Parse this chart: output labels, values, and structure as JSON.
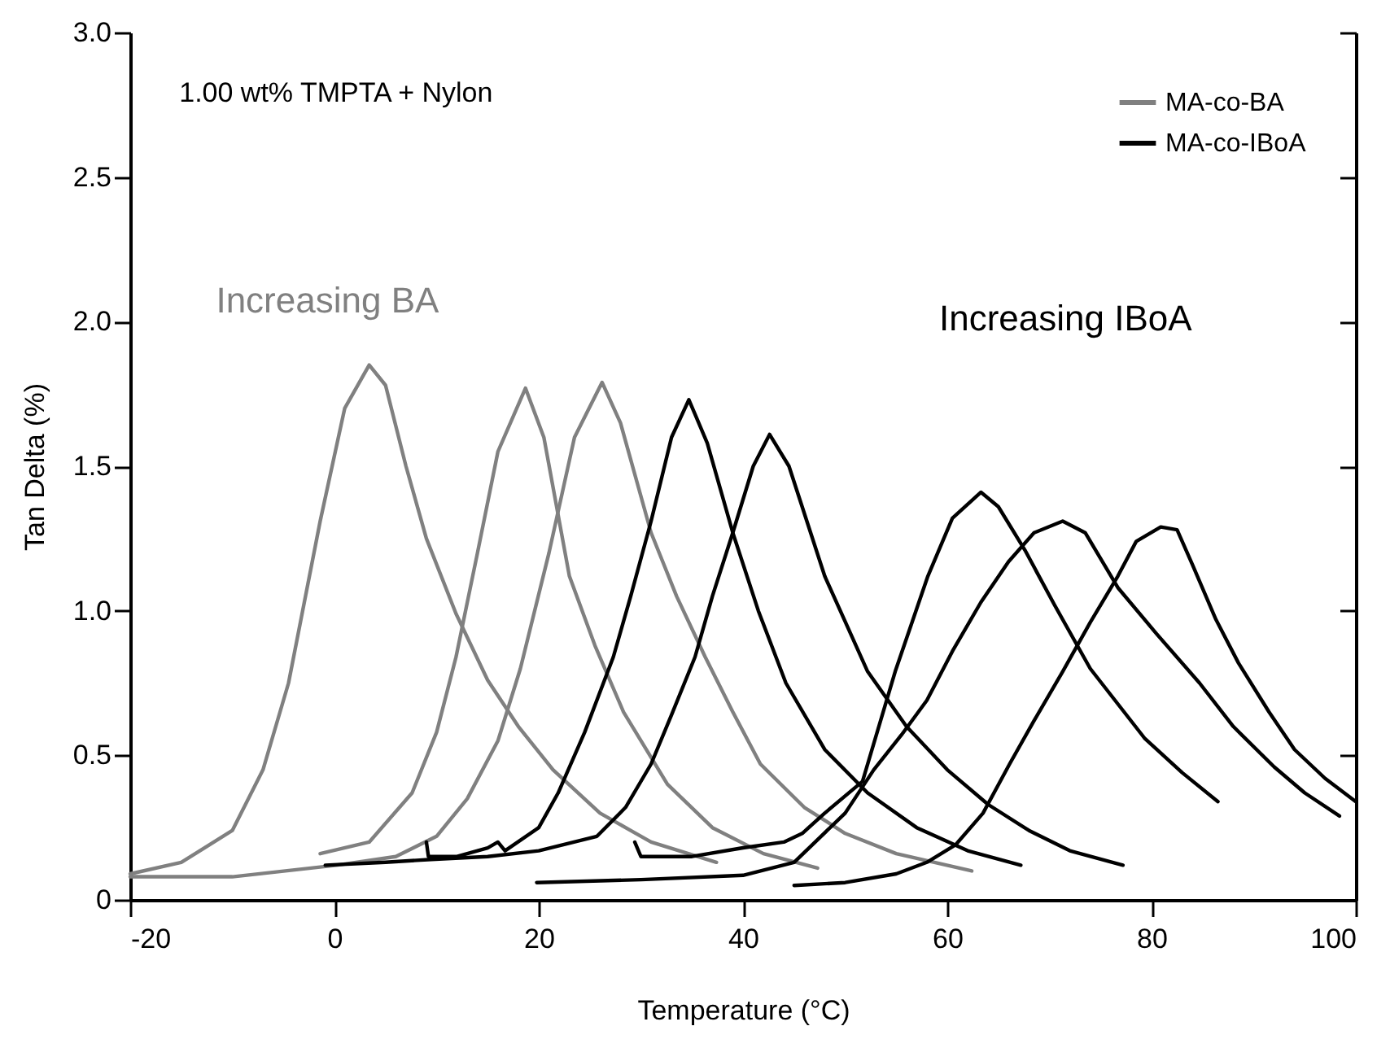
{
  "chart_data": {
    "type": "line",
    "xlabel": "Temperature (°C)",
    "ylabel": "Tan Delta (%)",
    "annotations": [
      "1.00 wt% TMPTA + Nylon",
      "Increasing BA",
      "Increasing IBoA"
    ],
    "xlim": [
      -20,
      100
    ],
    "xticks": [
      -20,
      0,
      20,
      40,
      60,
      80,
      100
    ],
    "ylim": [
      0,
      3
    ],
    "yticks": [
      0,
      {
        "value": 0.5,
        "label": "0.5"
      },
      {
        "value": 1,
        "label": "1.0"
      },
      {
        "value": 1.5,
        "label": "1.5"
      },
      {
        "value": 2,
        "label": "2.0"
      },
      {
        "value": 2.5,
        "label": "2.5"
      },
      {
        "value": 3,
        "label": "3.0"
      }
    ],
    "grid": false,
    "legend": "top right",
    "line_style": "solid",
    "series": [
      {
        "name": "MA-co-BA",
        "color": "#808080",
        "x": [
          -20,
          -15,
          -10,
          -7,
          -4.5,
          -1.4,
          1,
          3.4,
          5,
          7,
          9,
          11.9,
          15,
          18,
          21.4,
          26,
          31,
          37.4
        ],
        "values": [
          0.09,
          0.13,
          0.24,
          0.45,
          0.75,
          1.31,
          1.7,
          1.85,
          1.78,
          1.5,
          1.25,
          0.99,
          0.76,
          0.6,
          0.45,
          0.3,
          0.2,
          0.13
        ]
      },
      {
        "color": "#808080",
        "x": [
          -1.4,
          3.4,
          7.6,
          10,
          11.9,
          14,
          16,
          18.7,
          20.5,
          23,
          25.5,
          28.3,
          32.6,
          37,
          42,
          47.3
        ],
        "values": [
          0.16,
          0.2,
          0.37,
          0.58,
          0.84,
          1.2,
          1.55,
          1.77,
          1.6,
          1.12,
          0.88,
          0.65,
          0.4,
          0.25,
          0.16,
          0.11
        ]
      },
      {
        "color": "#808080",
        "x": [
          -20,
          -10,
          0.2,
          6,
          10,
          13,
          16,
          18.2,
          21,
          23.5,
          26.2,
          28,
          31,
          33.5,
          36.3,
          39,
          41.7,
          46,
          50,
          55,
          62.4
        ],
        "values": [
          0.08,
          0.08,
          0.12,
          0.15,
          0.22,
          0.35,
          0.55,
          0.8,
          1.2,
          1.6,
          1.79,
          1.65,
          1.27,
          1.05,
          0.84,
          0.65,
          0.47,
          0.32,
          0.23,
          0.16,
          0.1
        ]
      },
      {
        "name": "MA-co-IBoA",
        "color": "#000000",
        "x": [
          9,
          9.2,
          12,
          15,
          16,
          16.7,
          20,
          21.9,
          24.5,
          27.3,
          29,
          31,
          33,
          34.7,
          36.5,
          39,
          41.5,
          44.2,
          48,
          52.2,
          57,
          62,
          67.2
        ],
        "values": [
          0.2,
          0.15,
          0.15,
          0.18,
          0.2,
          0.17,
          0.25,
          0.37,
          0.58,
          0.84,
          1.05,
          1.31,
          1.6,
          1.73,
          1.58,
          1.27,
          1.0,
          0.75,
          0.52,
          0.37,
          0.25,
          0.17,
          0.12
        ]
      },
      {
        "color": "#000000",
        "x": [
          -0.9,
          5,
          9.5,
          15,
          20,
          25.7,
          28.5,
          31,
          33,
          35.3,
          37,
          39,
          41,
          42.6,
          44.5,
          48,
          52.2,
          56,
          60,
          64,
          68,
          72,
          77.2
        ],
        "values": [
          0.12,
          0.13,
          0.14,
          0.15,
          0.17,
          0.22,
          0.32,
          0.47,
          0.64,
          0.84,
          1.05,
          1.27,
          1.5,
          1.61,
          1.5,
          1.12,
          0.79,
          0.6,
          0.45,
          0.33,
          0.24,
          0.17,
          0.12
        ]
      },
      {
        "color": "#000000",
        "x": [
          29.4,
          30,
          35,
          40,
          44,
          45.8,
          48,
          51.7,
          54.9,
          58.1,
          60.5,
          63.3,
          65,
          67.6,
          70.5,
          74,
          79.3,
          83,
          86.5
        ],
        "values": [
          0.2,
          0.15,
          0.15,
          0.18,
          0.2,
          0.23,
          0.3,
          0.41,
          0.79,
          1.12,
          1.32,
          1.41,
          1.36,
          1.21,
          1.02,
          0.8,
          0.56,
          0.44,
          0.34
        ]
      },
      {
        "color": "#000000",
        "x": [
          19.8,
          30,
          40,
          45,
          50,
          52.8,
          55.5,
          58,
          60.5,
          63.3,
          66,
          68.5,
          71.3,
          73.5,
          76.7,
          80.5,
          84.7,
          88,
          92,
          95,
          98.4
        ],
        "values": [
          0.06,
          0.07,
          0.085,
          0.13,
          0.3,
          0.45,
          0.57,
          0.69,
          0.86,
          1.03,
          1.17,
          1.27,
          1.31,
          1.27,
          1.08,
          0.92,
          0.75,
          0.6,
          0.46,
          0.37,
          0.29
        ]
      },
      {
        "color": "#000000",
        "x": [
          45,
          50,
          55,
          58,
          60.8,
          63.5,
          66.1,
          68.5,
          71.3,
          74,
          76.7,
          78.5,
          80.9,
          82.5,
          84,
          86.3,
          88.5,
          91.5,
          94,
          97,
          100
        ],
        "values": [
          0.05,
          0.06,
          0.09,
          0.13,
          0.19,
          0.3,
          0.47,
          0.62,
          0.79,
          0.96,
          1.12,
          1.24,
          1.29,
          1.28,
          1.16,
          0.97,
          0.82,
          0.65,
          0.52,
          0.42,
          0.34
        ]
      }
    ]
  }
}
